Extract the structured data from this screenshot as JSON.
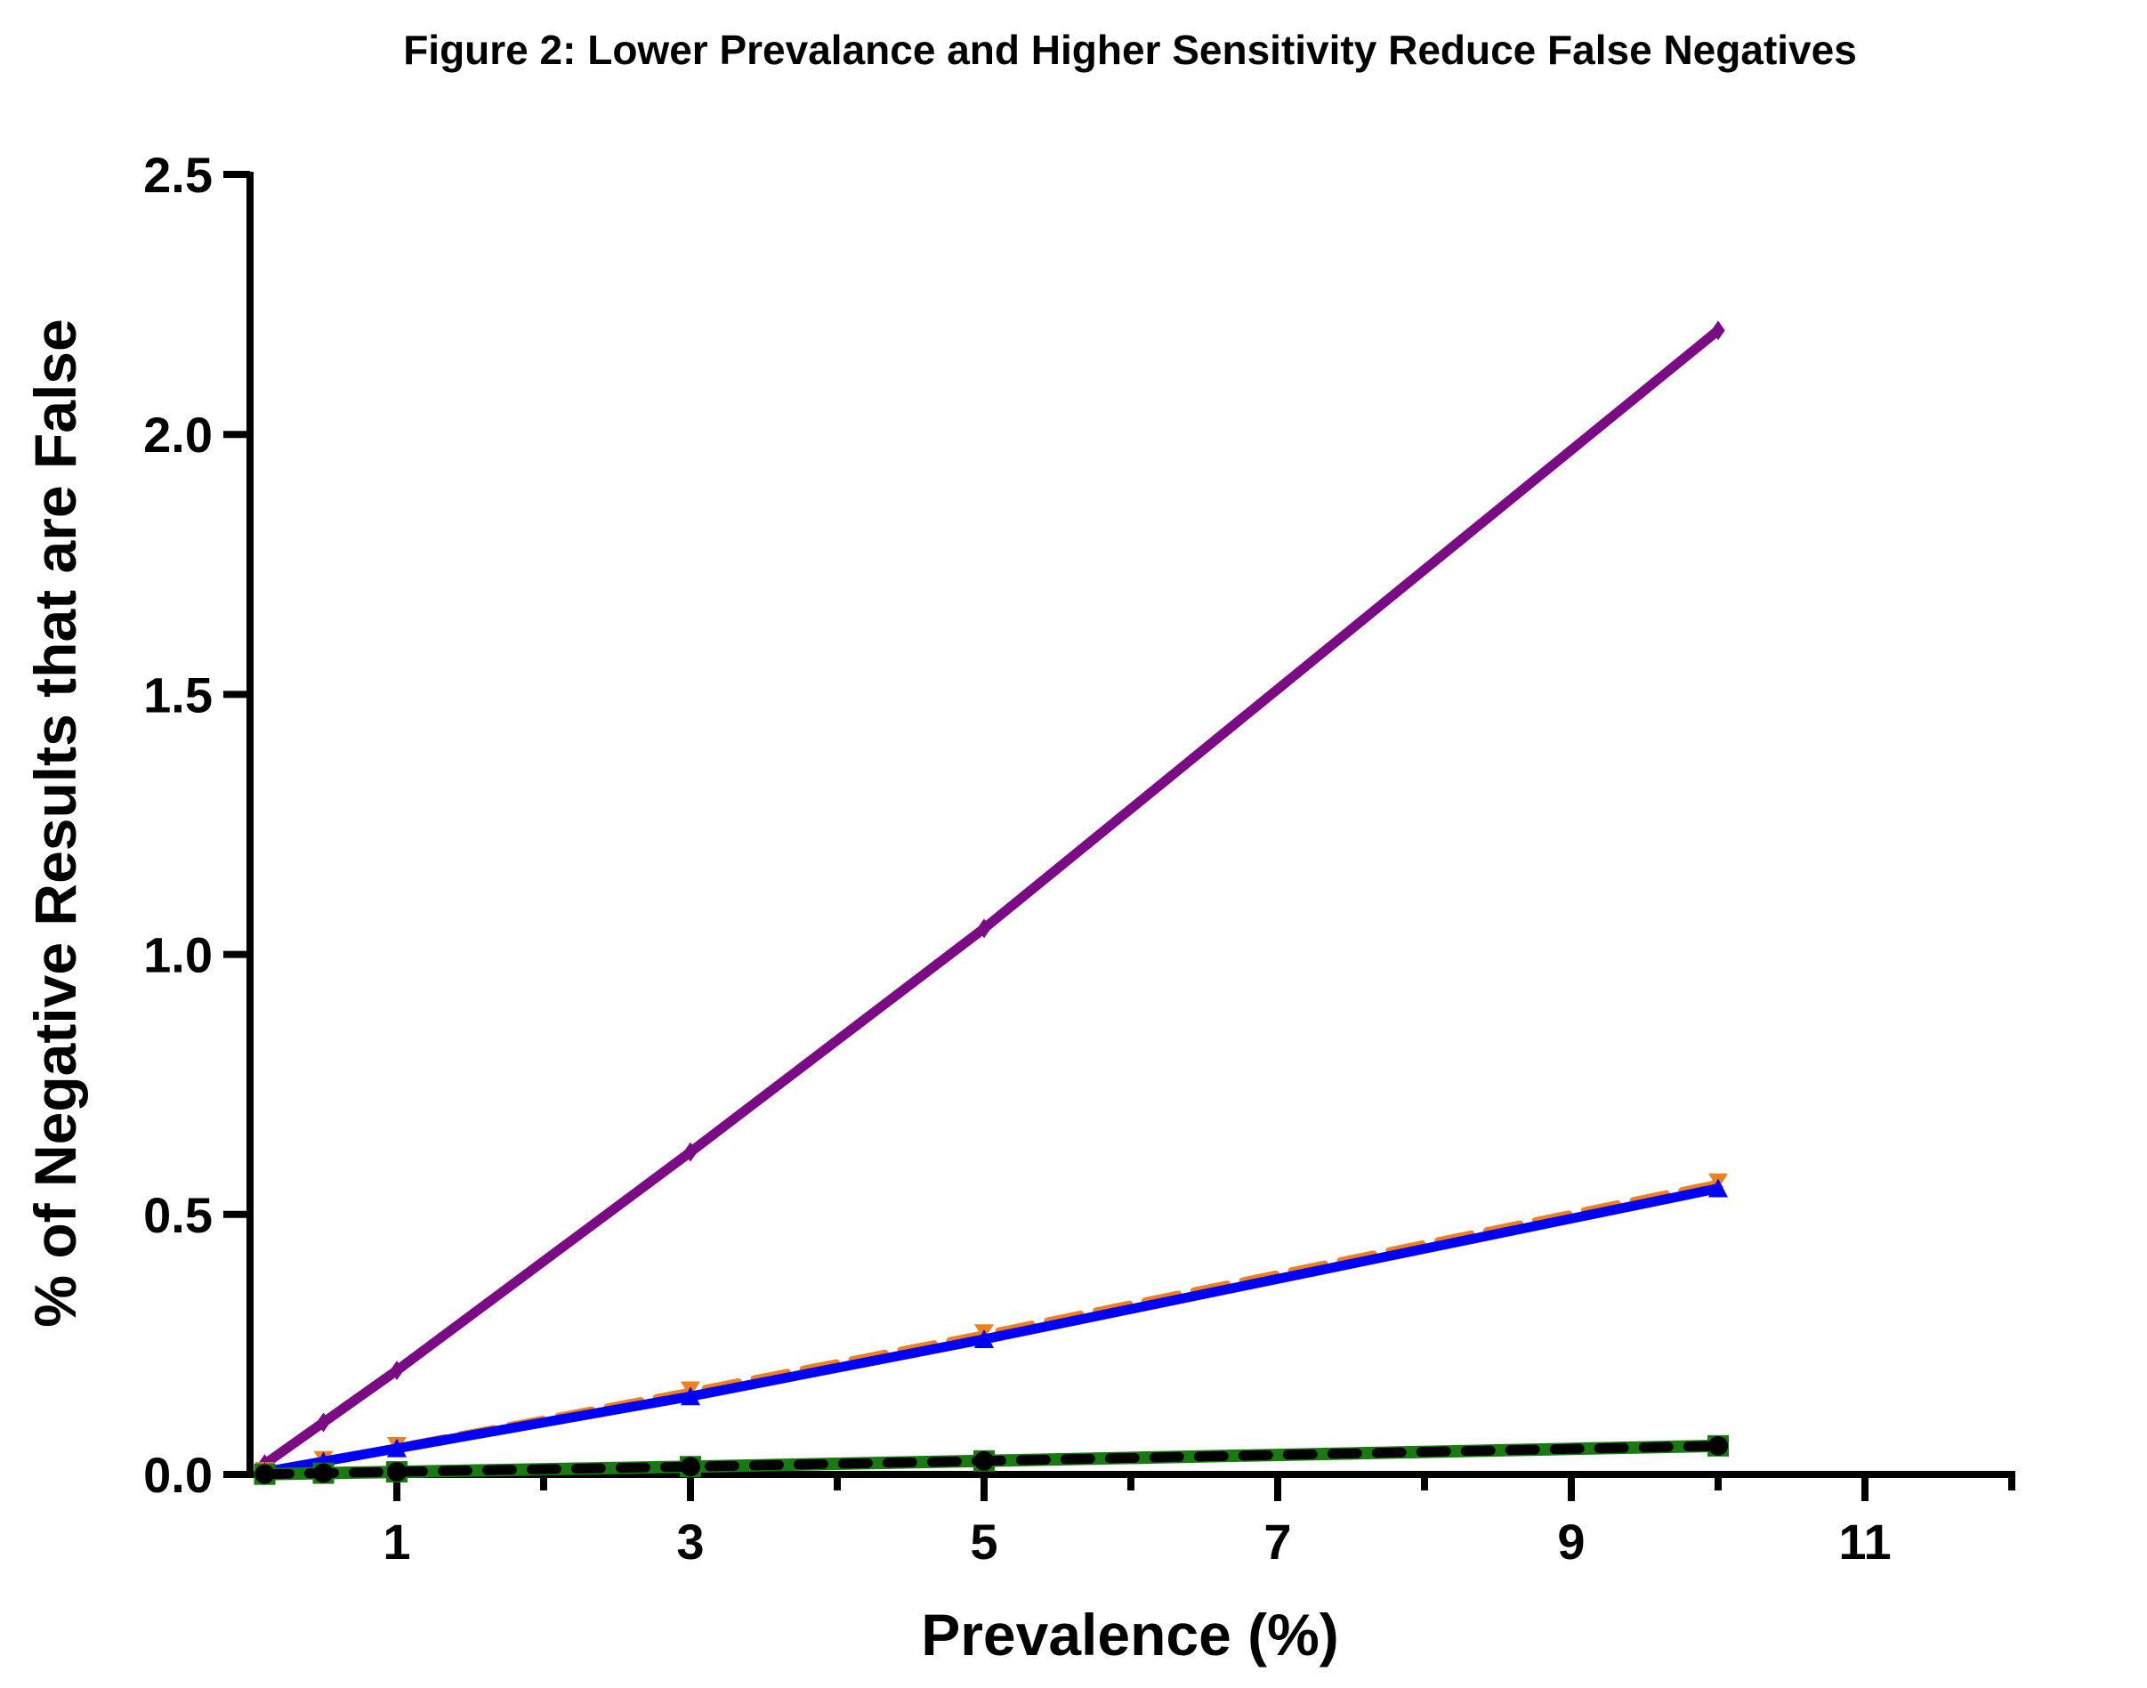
{
  "chart_data": {
    "type": "line",
    "title": "Figure 2: Lower Prevalance and Higher Sensitivity Reduce False Negatives",
    "xlabel": "Prevalence (%)",
    "ylabel": "% of Negative Results that are False",
    "xlim": [
      0,
      12
    ],
    "ylim": [
      0,
      2.5
    ],
    "xticks": [
      1,
      3,
      5,
      7,
      9,
      11
    ],
    "xticks_minor": [
      2,
      4,
      6,
      8,
      10,
      12
    ],
    "yticks": [
      "0.0",
      "0.5",
      "1.0",
      "1.5",
      "2.0",
      "2.5"
    ],
    "grid": false,
    "legend": "none",
    "x": [
      0.1,
      0.5,
      1,
      3,
      5,
      10
    ],
    "series": [
      {
        "color": "#7b0b85",
        "marker": "diamond",
        "dash": "solid",
        "values": [
          0.02,
          0.1,
          0.2,
          0.62,
          1.05,
          2.2
        ]
      },
      {
        "color": "#f07f1e",
        "marker": "triangle-down",
        "dash": "dashed",
        "values": [
          0.005,
          0.026,
          0.053,
          0.16,
          0.27,
          0.56
        ]
      },
      {
        "color": "#0000f5",
        "marker": "triangle-up",
        "dash": "solid",
        "values": [
          0.005,
          0.025,
          0.05,
          0.15,
          0.26,
          0.55
        ]
      },
      {
        "color": "#1a7a12",
        "marker": "square",
        "dash": "solid",
        "values": [
          0.0005,
          0.0025,
          0.005,
          0.015,
          0.026,
          0.055
        ]
      },
      {
        "color": "#000000",
        "marker": "circle",
        "dash": "dashed",
        "values": [
          0.0005,
          0.0025,
          0.005,
          0.015,
          0.026,
          0.055
        ]
      }
    ]
  }
}
